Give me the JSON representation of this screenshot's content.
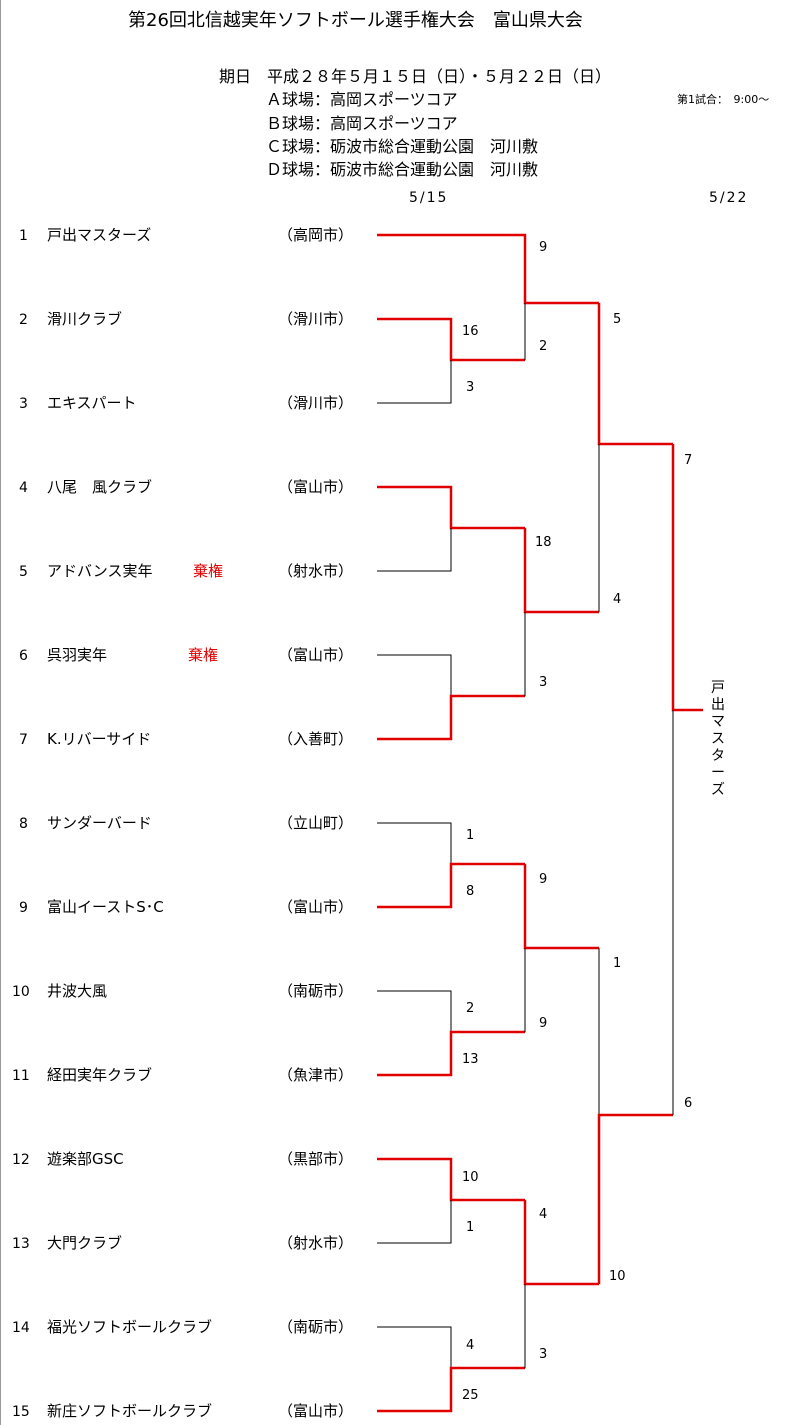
{
  "title": "第26回北信越実年ソフトボール選手権大会　富山県大会",
  "info": {
    "period": "期日　平成２８年５月１５日（日）・５月２２日（日）",
    "venues": [
      "Ａ球場：高岡スポーツコア",
      "Ｂ球場：高岡スポーツコア",
      "Ｃ球場：砺波市総合運動公園　河川敷",
      "Ｄ球場：砺波市総合運動公園　河川敷"
    ],
    "first_match": "第1試合：　9:00～"
  },
  "dates": {
    "day1": "5/15",
    "day2": "5/22"
  },
  "teams": [
    {
      "no": "1",
      "name": "戸出マスターズ",
      "city": "（高岡市）",
      "forfeit": ""
    },
    {
      "no": "2",
      "name": "滑川クラブ",
      "city": "（滑川市）",
      "forfeit": ""
    },
    {
      "no": "3",
      "name": "エキスパート",
      "city": "（滑川市）",
      "forfeit": ""
    },
    {
      "no": "4",
      "name": "八尾　風クラブ",
      "city": "（富山市）",
      "forfeit": ""
    },
    {
      "no": "5",
      "name": "アドバンス実年",
      "city": "（射水市）",
      "forfeit": "棄権"
    },
    {
      "no": "6",
      "name": "呉羽実年",
      "city": "（富山市）",
      "forfeit": "棄権"
    },
    {
      "no": "7",
      "name": "K.リバーサイド",
      "city": "（入善町）",
      "forfeit": ""
    },
    {
      "no": "8",
      "name": "サンダーバード",
      "city": "（立山町）",
      "forfeit": ""
    },
    {
      "no": "9",
      "name": "富山イーストS･C",
      "city": "（富山市）",
      "forfeit": ""
    },
    {
      "no": "10",
      "name": "井波大風",
      "city": "（南砺市）",
      "forfeit": ""
    },
    {
      "no": "11",
      "name": "経田実年クラブ",
      "city": "（魚津市）",
      "forfeit": ""
    },
    {
      "no": "12",
      "name": "遊楽部GSC",
      "city": "（黒部市）",
      "forfeit": ""
    },
    {
      "no": "13",
      "name": "大門クラブ",
      "city": "（射水市）",
      "forfeit": ""
    },
    {
      "no": "14",
      "name": "福光ソフトボールクラブ",
      "city": "（南砺市）",
      "forfeit": ""
    },
    {
      "no": "15",
      "name": "新庄ソフトボールクラブ",
      "city": "（富山市）",
      "forfeit": ""
    }
  ],
  "scores": {
    "r1_2v3_a": "16",
    "r1_2v3_b": "3",
    "r1_8v9_a": "1",
    "r1_8v9_b": "8",
    "r1_10v11_a": "2",
    "r1_10v11_b": "13",
    "r1_12v13_a": "10",
    "r1_12v13_b": "1",
    "r1_14v15_a": "4",
    "r1_14v15_b": "25",
    "r2_1_a": "9",
    "r2_1_b": "2",
    "r2_4v5_a": "18",
    "r2_4v5_b": "3",
    "r2_8to11_a": "9",
    "r2_8to11_b": "9",
    "r2_12to15_a": "4",
    "r2_12to15_b": "3",
    "qf_top_a": "5",
    "qf_top_b": "4",
    "qf_bot_a": "1",
    "qf_bot_b": "10",
    "final_a": "7",
    "final_b": "6"
  },
  "champion": "戸出マスターズ",
  "colors": {
    "winner_line": "#e00000",
    "loser_line": "#000000",
    "forfeit_text": "#e00000"
  }
}
